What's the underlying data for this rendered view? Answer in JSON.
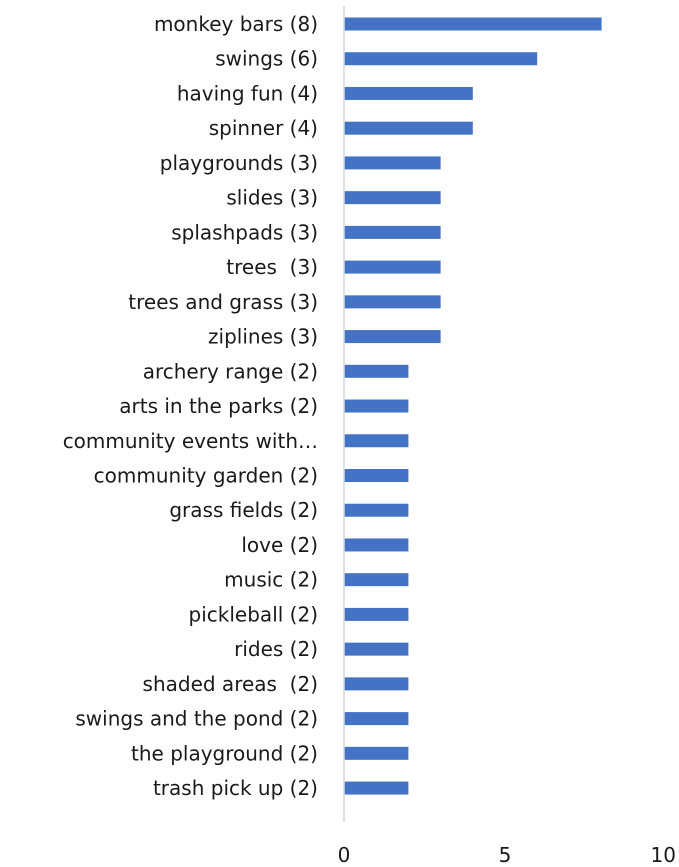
{
  "chart_data": {
    "type": "bar",
    "orientation": "horizontal",
    "categories": [
      "monkey bars (8)",
      "swings (6)",
      "having fun (4)",
      "spinner (4)",
      "playgrounds (3)",
      "slides (3)",
      "splashpads (3)",
      "trees  (3)",
      "trees and grass (3)",
      "ziplines (3)",
      "archery range (2)",
      "arts in the parks (2)",
      "community events with…",
      "community garden (2)",
      "grass fields (2)",
      "love (2)",
      "music (2)",
      "pickleball (2)",
      "rides (2)",
      "shaded areas  (2)",
      "swings and the pond (2)",
      "the playground (2)",
      "trash pick up (2)"
    ],
    "values": [
      8,
      6,
      4,
      4,
      3,
      3,
      3,
      3,
      3,
      3,
      2,
      2,
      2,
      2,
      2,
      2,
      2,
      2,
      2,
      2,
      2,
      2,
      2
    ],
    "xlim": [
      0,
      10
    ],
    "xticks": [
      "0",
      "5",
      "10"
    ],
    "bar_color": "#4472c4",
    "axis_color": "#d9d9d9",
    "grid": false,
    "legend": "none"
  }
}
